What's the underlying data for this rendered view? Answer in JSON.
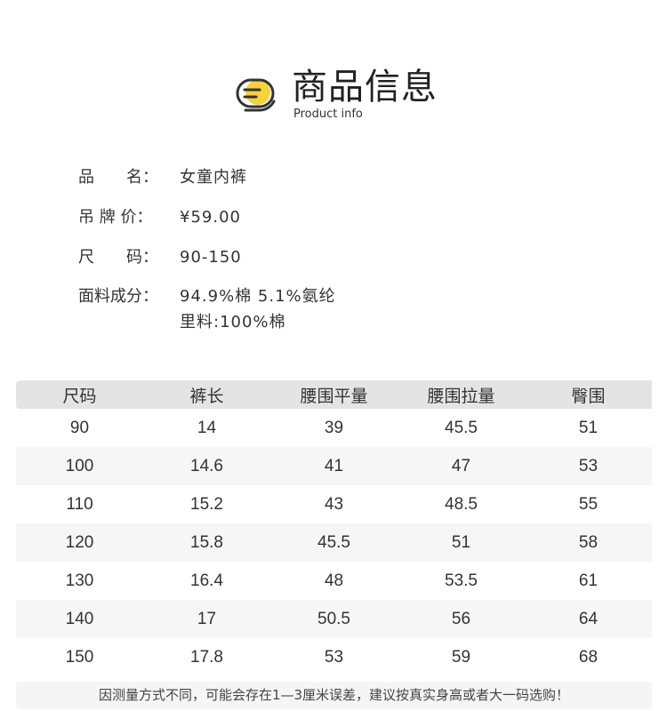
{
  "header": {
    "title": "商品信息",
    "subtitle": "Product info",
    "icon": "document-list-icon",
    "accent_color": "#f5d33a"
  },
  "info": [
    {
      "label": "品　　名：",
      "value": "女童内裤"
    },
    {
      "label": "吊 牌 价：",
      "value": "¥59.00"
    },
    {
      "label": "尺　　码：",
      "value": "90-150"
    },
    {
      "label": "面料成分：",
      "value": "94.9%棉 5.1%氨纶",
      "value2": "里料:100%棉"
    }
  ],
  "table": {
    "headers": [
      "尺码",
      "裤长",
      "腰围平量",
      "腰围拉量",
      "臀围"
    ],
    "rows": [
      [
        "90",
        "14",
        "39",
        "45.5",
        "51"
      ],
      [
        "100",
        "14.6",
        "41",
        "47",
        "53"
      ],
      [
        "110",
        "15.2",
        "43",
        "48.5",
        "55"
      ],
      [
        "120",
        "15.8",
        "45.5",
        "51",
        "58"
      ],
      [
        "130",
        "16.4",
        "48",
        "53.5",
        "61"
      ],
      [
        "140",
        "17",
        "50.5",
        "56",
        "64"
      ],
      [
        "150",
        "17.8",
        "53",
        "59",
        "68"
      ]
    ]
  },
  "note": "因测量方式不同，可能会存在1—3厘米误差，建议按真实身高或者大一码选购！"
}
